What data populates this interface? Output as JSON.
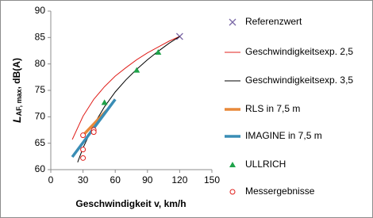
{
  "chart_data": {
    "type": "line",
    "x_label": "Geschwindigkeit v, km/h",
    "y_label": {
      "main": "L",
      "sub": "AF, max",
      "unit": ", dB(A)"
    },
    "xlim": [
      0,
      150
    ],
    "xticks": [
      0,
      30,
      60,
      90,
      120,
      150
    ],
    "ylim": [
      60,
      90
    ],
    "yticks": [
      60,
      65,
      70,
      75,
      80,
      85,
      90
    ],
    "grid": false,
    "legend": "right",
    "series": [
      {
        "name": "Referenzwert",
        "color": "#7b68a6",
        "style": "x-marker",
        "x": [
          120
        ],
        "values": [
          85.2
        ]
      },
      {
        "name": "Geschwindigkeitsexp. 2,5",
        "color": "#e0201c",
        "style": "thin-line",
        "x": [
          20,
          30,
          40,
          50,
          60,
          70,
          80,
          90,
          100,
          110,
          120
        ],
        "values": [
          65.7,
          70.1,
          73.3,
          75.7,
          77.7,
          79.3,
          80.8,
          82.1,
          83.2,
          84.3,
          85.2
        ]
      },
      {
        "name": "Geschwindigkeitsexp. 3,5",
        "color": "#000000",
        "style": "thin-line",
        "x": [
          25,
          30,
          40,
          50,
          60,
          70,
          80,
          90,
          100,
          110,
          120
        ],
        "values": [
          61.4,
          64.1,
          68.5,
          71.9,
          74.7,
          77.0,
          79.0,
          80.8,
          82.4,
          83.9,
          85.2
        ]
      },
      {
        "name": "RLS in 7,5 m",
        "color": "#e8893a",
        "style": "thick-line",
        "x": [
          30,
          52
        ],
        "values": [
          66.5,
          71.2
        ]
      },
      {
        "name": "IMAGINE in 7,5 m",
        "color": "#3a8db5",
        "style": "thick-line",
        "x": [
          20,
          60
        ],
        "values": [
          62.4,
          73.3
        ]
      },
      {
        "name": "ULLRICH",
        "color": "#1fa34a",
        "style": "triangle",
        "x": [
          50,
          80,
          100
        ],
        "values": [
          72.7,
          78.8,
          82.2
        ]
      },
      {
        "name": "Messergebnisse",
        "color": "#e0201c",
        "style": "circle",
        "x": [
          30,
          30,
          30,
          40,
          40
        ],
        "values": [
          66.5,
          63.8,
          62.2,
          67.5,
          67.1
        ]
      }
    ]
  }
}
